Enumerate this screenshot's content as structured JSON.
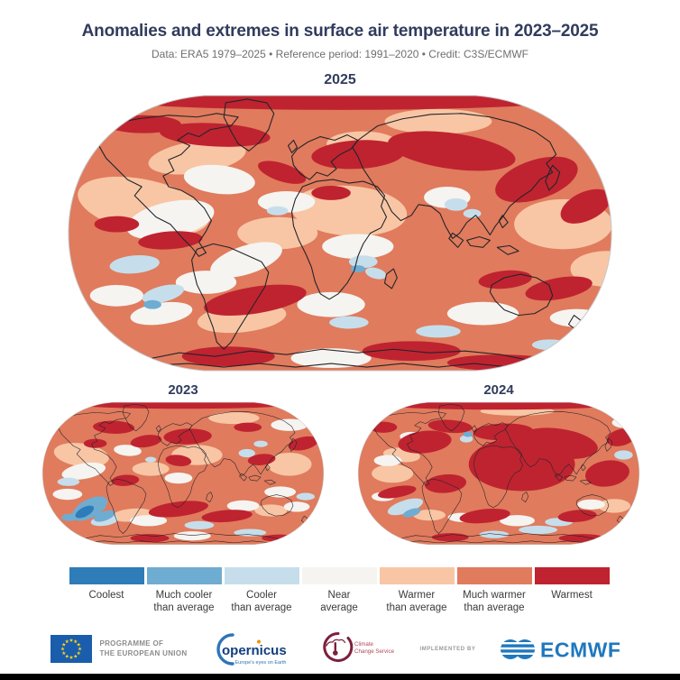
{
  "header": {
    "title": "Anomalies and extremes in surface air temperature in 2023–2025",
    "subtitle": "Data: ERA5 1979–2025 • Reference period: 1991–2020 • Credit: C3S/ECMWF"
  },
  "maps": {
    "large": {
      "year": "2025"
    },
    "small_left": {
      "year": "2023"
    },
    "small_right": {
      "year": "2024"
    }
  },
  "palette": {
    "coolest": "#2E7CB8",
    "much_cooler": "#6FACD2",
    "cooler": "#C6DEEB",
    "near_average": "#F5F4F1",
    "warmer": "#F8C6A4",
    "much_warmer": "#E07B5D",
    "warmest": "#BF2330",
    "coastline": "#22242A",
    "map_edge": "#C8C8C8",
    "title_navy": "#313C5D"
  },
  "legend": {
    "items": [
      {
        "lines": [
          "Coolest"
        ],
        "color": "#2E7CB8"
      },
      {
        "lines": [
          "Much cooler",
          "than average"
        ],
        "color": "#6FACD2"
      },
      {
        "lines": [
          "Cooler",
          "than average"
        ],
        "color": "#C6DEEB"
      },
      {
        "lines": [
          "Near",
          "average"
        ],
        "color": "#F5F4F1"
      },
      {
        "lines": [
          "Warmer",
          "than average"
        ],
        "color": "#F8C6A4"
      },
      {
        "lines": [
          "Much warmer",
          "than average"
        ],
        "color": "#E07B5D"
      },
      {
        "lines": [
          "Warmest"
        ],
        "color": "#BF2330"
      }
    ]
  },
  "footer": {
    "eu": {
      "line1": "PROGRAMME OF",
      "line2": "THE EUROPEAN UNION"
    },
    "copernicus": {
      "wordmark": "opernicus",
      "tagline": "Europe's eyes on Earth"
    },
    "climate_service": {
      "line1": "Climate",
      "line2": "Change Service"
    },
    "implemented_by": "IMPLEMENTED BY",
    "ecmwf": {
      "wordmark": "ECMWF"
    }
  },
  "chart_data": {
    "type": "heatmap",
    "subtype": "world-map-anomaly-categories",
    "projection": "Robinson",
    "variable": "Surface air temperature anomaly category vs 1991–2020 reference (ERA5 1979–2025)",
    "categories": [
      "Coolest",
      "Much cooler than average",
      "Cooler than average",
      "Near average",
      "Warmer than average",
      "Much warmer than average",
      "Warmest"
    ],
    "category_colors": [
      "#2E7CB8",
      "#6FACD2",
      "#C6DEEB",
      "#F5F4F1",
      "#F8C6A4",
      "#E07B5D",
      "#BF2330"
    ],
    "legend_position": "bottom",
    "maps": [
      {
        "year": "2025",
        "size": "large",
        "summary": "Dominated by warmer and much-warmer categories; warmest bands across Arctic Canada, Siberia, the northwest Pacific and the South Atlantic; near-average patches over the central Americas, mid-Atlantic and Southern Ocean; small cooler spots around India, central Africa and the South Pacific."
      },
      {
        "year": "2023",
        "size": "small",
        "summary": "Widespread warm anomalies with warmest areas over northern Canada, the North Atlantic, Europe/western Russia and a South Atlantic–Indian Ocean band; pronounced cooler-to-coolest region in the Southeast Pacific west of southern South America; pale cool patches in the Southern Ocean and around India."
      },
      {
        "year": "2024",
        "size": "small",
        "summary": "Warmest category covers most of Africa, southern Europe, the Middle East, Asia and northern South America plus large ocean bands; cool spot south of Greenland; cooler/near-average swirls in the Southeast Pacific and Southern Ocean; near-average interior Australia."
      }
    ]
  }
}
